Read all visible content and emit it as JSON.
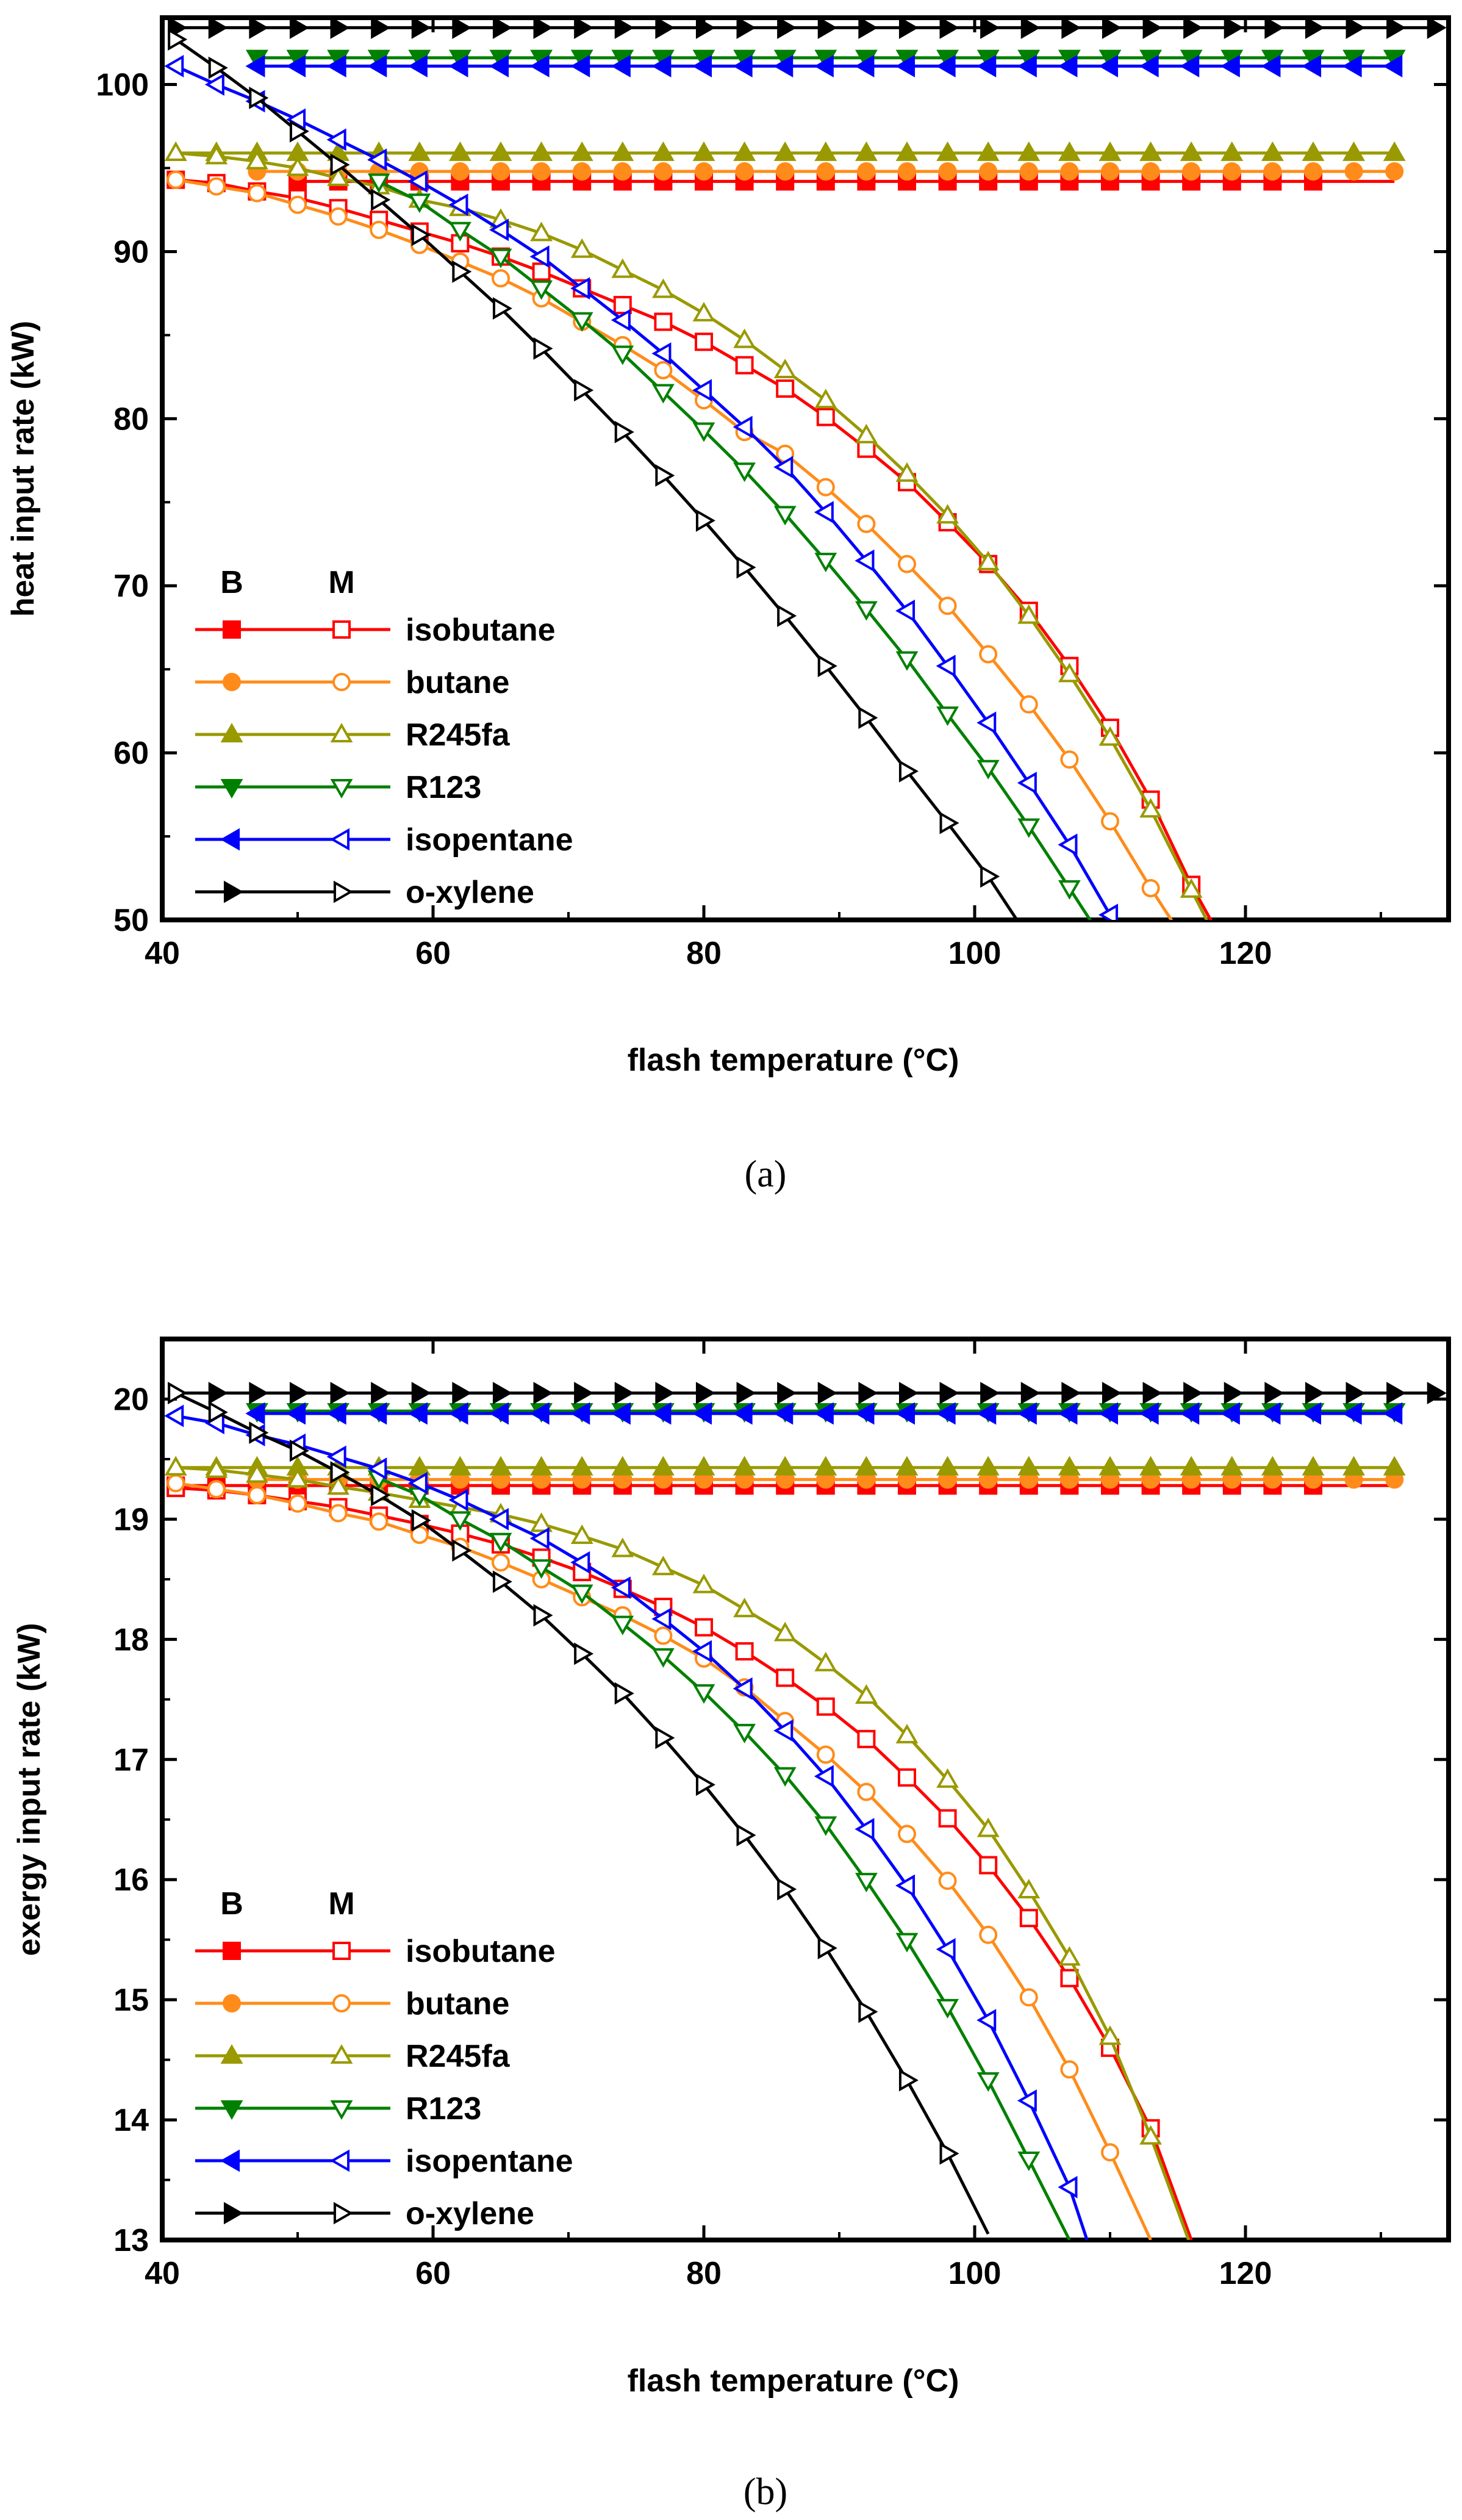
{
  "chart_data": [
    {
      "type": "line",
      "caption": "(a)",
      "xlabel": "flash temperature (°C)",
      "ylabel": "heat input rate (kW)",
      "xlim": [
        40,
        135
      ],
      "ylim": [
        50,
        104
      ],
      "xticks": [
        40,
        60,
        80,
        100,
        120
      ],
      "yticks": [
        50,
        60,
        70,
        80,
        90,
        100
      ],
      "legend_header": [
        "B",
        "M"
      ],
      "legend_position": "bottom-left",
      "series": [
        {
          "name": "isobutane",
          "color": "#ff0000",
          "marker": "square",
          "B": {
            "x": [
              50,
              131
            ],
            "y": [
              94.2,
              94.2
            ],
            "style": "markers",
            "step": 3,
            "last": 125
          },
          "M": {
            "x": [
              41,
              44,
              47,
              50,
              53,
              56,
              59,
              62,
              65,
              68,
              71,
              74,
              77,
              80,
              83,
              86,
              89,
              92,
              95,
              98,
              101,
              104,
              107,
              110,
              113,
              116,
              117.5
            ],
            "y": [
              94.3,
              94.1,
              93.6,
              93.2,
              92.6,
              91.9,
              91.2,
              90.5,
              89.7,
              88.8,
              87.8,
              86.8,
              85.8,
              84.6,
              83.2,
              81.8,
              80.1,
              78.2,
              76.2,
              73.8,
              71.3,
              68.5,
              65.2,
              61.5,
              57.2,
              52.1,
              49.9
            ]
          }
        },
        {
          "name": "butane",
          "color": "#ff8c1a",
          "marker": "circle",
          "B": {
            "x": [
              47,
              131
            ],
            "y": [
              94.8,
              94.8
            ],
            "style": "markers",
            "step": 3,
            "last": 131
          },
          "M": {
            "x": [
              41,
              44,
              47,
              50,
              53,
              56,
              59,
              62,
              65,
              68,
              71,
              74,
              77,
              80,
              83,
              86,
              89,
              92,
              95,
              98,
              101,
              104,
              107,
              110,
              113,
              114.6
            ],
            "y": [
              94.3,
              93.9,
              93.5,
              92.8,
              92.1,
              91.3,
              90.4,
              89.4,
              88.4,
              87.2,
              85.8,
              84.4,
              82.9,
              81.1,
              79.2,
              77.9,
              75.9,
              73.7,
              71.3,
              68.8,
              65.9,
              62.9,
              59.6,
              55.9,
              51.9,
              49.9
            ]
          }
        },
        {
          "name": "R245fa",
          "color": "#999900",
          "marker": "triangle-up",
          "B": {
            "x": [
              41,
              131
            ],
            "y": [
              95.9,
              95.9
            ],
            "style": "markers",
            "step": 3,
            "last": 131
          },
          "M": {
            "x": [
              41,
              44,
              47,
              50,
              53,
              56,
              59,
              62,
              65,
              68,
              71,
              74,
              77,
              80,
              83,
              86,
              89,
              92,
              95,
              98,
              101,
              104,
              107,
              110,
              113,
              116,
              117.2
            ],
            "y": [
              95.9,
              95.7,
              95.4,
              95.0,
              94.4,
              93.9,
              93.1,
              92.6,
              91.9,
              91.1,
              90.1,
              88.9,
              87.7,
              86.3,
              84.7,
              82.9,
              81.1,
              79.0,
              76.7,
              74.2,
              71.4,
              68.2,
              64.7,
              60.9,
              56.6,
              51.8,
              49.9
            ]
          }
        },
        {
          "name": "R123",
          "color": "#008000",
          "marker": "triangle-down",
          "B": {
            "x": [
              47,
              131
            ],
            "y": [
              101.6,
              101.6
            ],
            "style": "markers",
            "step": 3,
            "last": 131
          },
          "M": {
            "x": [
              56,
              59,
              62,
              65,
              68,
              71,
              74,
              77,
              80,
              83,
              86,
              89,
              92,
              95,
              98,
              101,
              104,
              107,
              108.6
            ],
            "y": [
              94.2,
              93.0,
              91.3,
              89.7,
              87.8,
              85.9,
              83.9,
              81.6,
              79.3,
              76.9,
              74.3,
              71.5,
              68.6,
              65.6,
              62.3,
              59.1,
              55.6,
              51.9,
              49.9
            ]
          }
        },
        {
          "name": "isopentane",
          "color": "#0000ff",
          "marker": "triangle-left",
          "B": {
            "x": [
              47,
              131
            ],
            "y": [
              101.1,
              101.1
            ],
            "style": "markers",
            "step": 3,
            "last": 131
          },
          "M": {
            "x": [
              41,
              44,
              47,
              50,
              53,
              56,
              59,
              62,
              65,
              68,
              71,
              74,
              77,
              80,
              83,
              86,
              89,
              92,
              95,
              98,
              101,
              104,
              107,
              110,
              110.5
            ],
            "y": [
              101.1,
              100.0,
              99.0,
              97.9,
              96.7,
              95.5,
              94.2,
              92.8,
              91.3,
              89.7,
              87.8,
              85.9,
              83.9,
              81.7,
              79.5,
              77.1,
              74.4,
              71.5,
              68.5,
              65.2,
              61.8,
              58.2,
              54.5,
              50.3,
              49.9
            ]
          }
        },
        {
          "name": "o-xylene",
          "color": "#000000",
          "marker": "triangle-right",
          "B": {
            "x": [
              41,
              134.5
            ],
            "y": [
              103.4,
              103.4
            ],
            "style": "markers",
            "step": 3,
            "last": 134
          },
          "M": {
            "x": [
              41,
              44,
              47,
              50,
              53,
              56,
              59,
              62,
              65,
              68,
              71,
              74,
              77,
              80,
              83,
              86,
              89,
              92,
              95,
              98,
              101,
              103.2
            ],
            "y": [
              102.7,
              101.0,
              99.2,
              97.2,
              95.2,
              93.1,
              91.0,
              88.8,
              86.6,
              84.2,
              81.7,
              79.2,
              76.6,
              73.9,
              71.1,
              68.2,
              65.2,
              62.1,
              58.9,
              55.8,
              52.6,
              49.9
            ]
          }
        }
      ]
    },
    {
      "type": "line",
      "caption": "(b)",
      "xlabel": "flash temperature (°C)",
      "ylabel": "exergy input rate (kW)",
      "xlim": [
        40,
        135
      ],
      "ylim": [
        13,
        20.5
      ],
      "xticks": [
        40,
        60,
        80,
        100,
        120
      ],
      "yticks": [
        13,
        14,
        15,
        16,
        17,
        18,
        19,
        20
      ],
      "legend_header": [
        "B",
        "M"
      ],
      "legend_position": "bottom-left",
      "series": [
        {
          "name": "isobutane",
          "color": "#ff0000",
          "marker": "square",
          "B": {
            "x": [
              41,
              131
            ],
            "y": [
              19.28,
              19.28
            ],
            "style": "markers",
            "step": 3,
            "last": 125
          },
          "M": {
            "x": [
              41,
              44,
              47,
              50,
              53,
              56,
              59,
              62,
              65,
              68,
              71,
              74,
              77,
              80,
              83,
              86,
              89,
              92,
              95,
              98,
              101,
              104,
              107,
              110,
              113,
              116
            ],
            "y": [
              19.26,
              19.24,
              19.2,
              19.15,
              19.1,
              19.03,
              18.96,
              18.88,
              18.79,
              18.68,
              18.56,
              18.42,
              18.27,
              18.1,
              17.9,
              17.68,
              17.44,
              17.17,
              16.85,
              16.51,
              16.12,
              15.68,
              15.18,
              14.6,
              13.93,
              13.0
            ]
          }
        },
        {
          "name": "butane",
          "color": "#ff8c1a",
          "marker": "circle",
          "B": {
            "x": [
              47,
              131
            ],
            "y": [
              19.33,
              19.33
            ],
            "style": "markers",
            "step": 3,
            "last": 131
          },
          "M": {
            "x": [
              41,
              44,
              47,
              50,
              53,
              56,
              59,
              62,
              65,
              68,
              71,
              74,
              77,
              80,
              83,
              86,
              89,
              92,
              95,
              98,
              101,
              104,
              107,
              110,
              113
            ],
            "y": [
              19.3,
              19.25,
              19.2,
              19.13,
              19.05,
              18.98,
              18.87,
              18.77,
              18.64,
              18.5,
              18.35,
              18.2,
              18.03,
              17.84,
              17.6,
              17.32,
              17.04,
              16.73,
              16.38,
              15.99,
              15.54,
              15.02,
              14.42,
              13.73,
              13.0
            ]
          }
        },
        {
          "name": "R245fa",
          "color": "#999900",
          "marker": "triangle-up",
          "B": {
            "x": [
              41,
              131
            ],
            "y": [
              19.43,
              19.43
            ],
            "style": "markers",
            "step": 3,
            "last": 131
          },
          "M": {
            "x": [
              41,
              44,
              47,
              50,
              53,
              56,
              59,
              62,
              65,
              68,
              71,
              74,
              77,
              80,
              83,
              86,
              89,
              92,
              95,
              98,
              101,
              104,
              107,
              110,
              113,
              115.8
            ],
            "y": [
              19.43,
              19.41,
              19.37,
              19.33,
              19.27,
              19.22,
              19.16,
              19.1,
              19.04,
              18.96,
              18.86,
              18.75,
              18.6,
              18.45,
              18.25,
              18.05,
              17.8,
              17.53,
              17.2,
              16.83,
              16.42,
              15.91,
              15.35,
              14.69,
              13.86,
              13.0
            ]
          }
        },
        {
          "name": "R123",
          "color": "#008000",
          "marker": "triangle-down",
          "B": {
            "x": [
              47,
              131
            ],
            "y": [
              19.9,
              19.9
            ],
            "style": "markers",
            "step": 3,
            "last": 131
          },
          "M": {
            "x": [
              56,
              59,
              62,
              65,
              68,
              71,
              74,
              77,
              80,
              83,
              86,
              89,
              92,
              95,
              98,
              101,
              104,
              107
            ],
            "y": [
              19.34,
              19.2,
              19.0,
              18.82,
              18.6,
              18.39,
              18.13,
              17.86,
              17.56,
              17.23,
              16.87,
              16.46,
              15.99,
              15.49,
              14.94,
              14.33,
              13.67,
              13.0
            ]
          }
        },
        {
          "name": "isopentane",
          "color": "#0000ff",
          "marker": "triangle-left",
          "B": {
            "x": [
              47,
              131
            ],
            "y": [
              19.88,
              19.88
            ],
            "style": "markers",
            "step": 3,
            "last": 131
          },
          "M": {
            "x": [
              41,
              44,
              47,
              50,
              53,
              56,
              59,
              62,
              65,
              68,
              71,
              74,
              77,
              80,
              83,
              86,
              89,
              92,
              95,
              98,
              101,
              104,
              107,
              108.3
            ],
            "y": [
              19.86,
              19.8,
              19.7,
              19.62,
              19.52,
              19.42,
              19.3,
              19.16,
              19.0,
              18.84,
              18.64,
              18.43,
              18.17,
              17.9,
              17.59,
              17.24,
              16.86,
              16.42,
              15.95,
              15.42,
              14.83,
              14.16,
              13.44,
              13.0
            ]
          }
        },
        {
          "name": "o-xylene",
          "color": "#000000",
          "marker": "triangle-right",
          "B": {
            "x": [
              41,
              134.5
            ],
            "y": [
              20.05,
              20.05
            ],
            "style": "markers",
            "step": 3,
            "last": 134
          },
          "M": {
            "x": [
              41,
              44,
              47,
              50,
              53,
              56,
              59,
              62,
              65,
              68,
              71,
              74,
              77,
              80,
              83,
              86,
              89,
              92,
              95,
              98,
              101
            ],
            "y": [
              20.05,
              19.89,
              19.72,
              19.57,
              19.39,
              19.2,
              18.99,
              18.74,
              18.48,
              18.2,
              17.88,
              17.55,
              17.18,
              16.79,
              16.37,
              15.92,
              15.43,
              14.9,
              14.33,
              13.72,
              13.05
            ]
          }
        }
      ]
    }
  ]
}
